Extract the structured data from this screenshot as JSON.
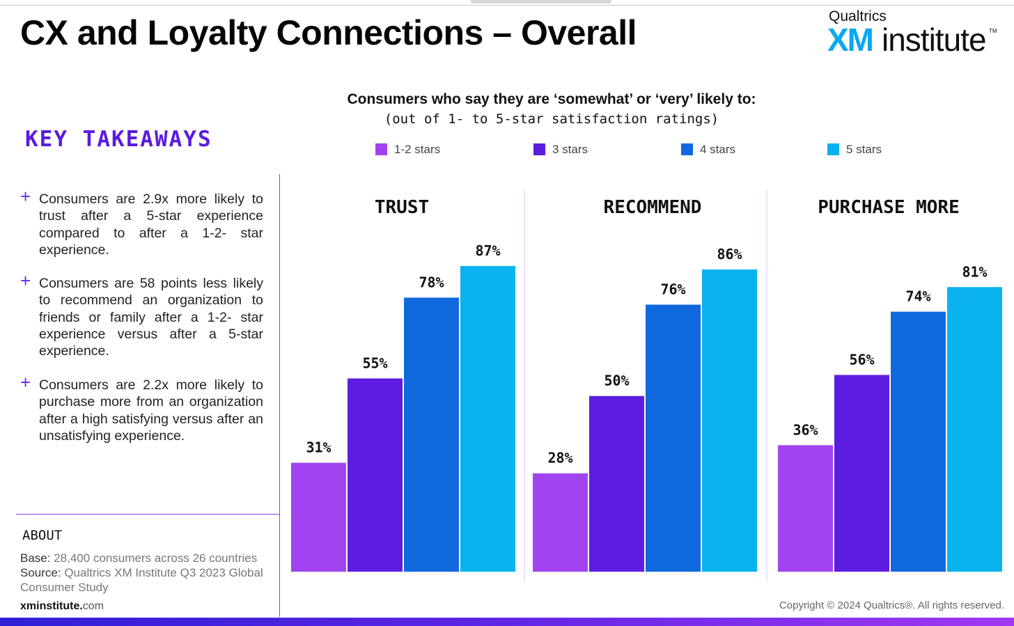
{
  "title": "CX and Loyalty Connections – Overall",
  "logo": {
    "top": "Qualtrics",
    "xm": "XM",
    "institute": "institute",
    "tm": "TM"
  },
  "takeaways": {
    "heading": "KEY TAKEAWAYS",
    "items": [
      {
        "symbol": "+",
        "text": "Consumers are 2.9x more likely to trust after a 5-star experience compared to after a 1-2- star experience."
      },
      {
        "symbol": "+",
        "text": "Consumers are 58 points less likely to recommend an organization to friends or family after a 1-2- star experience versus after a 5-star experience."
      },
      {
        "symbol": "+",
        "text": "Consumers are 2.2x more likely to purchase more from an organization after a high satisfying versus after an unsatisfying experience."
      }
    ]
  },
  "about": {
    "heading": "ABOUT",
    "base_label": "Base:",
    "base_text": "28,400 consumers across 26 countries",
    "source_label": "Source:",
    "source_text": "Qualtrics XM Institute Q3 2023 Global Consumer Study"
  },
  "footer": {
    "site_bold": "xminstitute.",
    "site_rest": "com",
    "copyright": "Copyright © 2024 Qualtrics®. All rights reserved."
  },
  "colors": {
    "s1": "#a144f0",
    "s2": "#5c1de1",
    "s3": "#1169de",
    "s4": "#0bb2f0",
    "accent": "#5b1be0"
  },
  "chart_data": {
    "type": "bar",
    "title": "Consumers who say they are ‘somewhat’ or ‘very’ likely to:",
    "subtitle": "(out of 1- to 5-star satisfaction ratings)",
    "categories": [
      "TRUST",
      "RECOMMEND",
      "PURCHASE MORE"
    ],
    "series": [
      {
        "name": "1-2 stars",
        "values": [
          31,
          28,
          36
        ]
      },
      {
        "name": "3 stars",
        "values": [
          55,
          50,
          56
        ]
      },
      {
        "name": "4 stars",
        "values": [
          78,
          76,
          74
        ]
      },
      {
        "name": "5 stars",
        "values": [
          87,
          86,
          81
        ]
      }
    ],
    "value_suffix": "%",
    "ylim": [
      0,
      100
    ],
    "legend_position": "top",
    "grid": false
  }
}
